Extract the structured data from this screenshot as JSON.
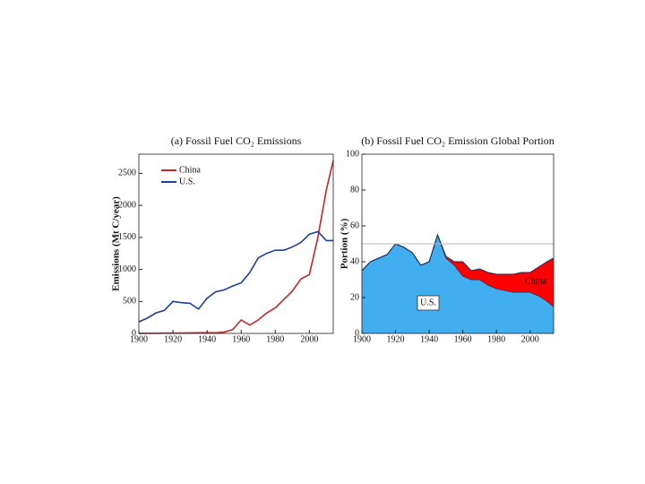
{
  "chart_data": [
    {
      "type": "line",
      "title": "(a)  Fossil Fuel CO₂ Emissions",
      "y_label": "Emissions (Mt C/year)",
      "x": [
        1900,
        1905,
        1910,
        1915,
        1920,
        1925,
        1930,
        1935,
        1940,
        1945,
        1950,
        1955,
        1960,
        1965,
        1970,
        1975,
        1980,
        1985,
        1990,
        1995,
        2000,
        2005,
        2010,
        2014
      ],
      "series": [
        {
          "name": "China",
          "color": "#c0282a",
          "values": [
            1,
            2,
            3,
            4,
            5,
            6,
            8,
            10,
            12,
            10,
            20,
            60,
            210,
            130,
            210,
            320,
            400,
            530,
            660,
            850,
            920,
            1500,
            2250,
            2700
          ]
        },
        {
          "name": "U.S.",
          "color": "#1f3f9f",
          "values": [
            180,
            240,
            320,
            360,
            500,
            480,
            470,
            380,
            550,
            650,
            680,
            740,
            790,
            950,
            1180,
            1250,
            1300,
            1300,
            1350,
            1420,
            1550,
            1590,
            1450,
            1450
          ]
        }
      ],
      "xlim": [
        1900,
        2014
      ],
      "xticks": [
        1900,
        1920,
        1940,
        1960,
        1980,
        2000
      ],
      "ylim": [
        0,
        2800
      ],
      "yticks": [
        0,
        500,
        1000,
        1500,
        2000,
        2500
      ],
      "legend": "upper-left"
    },
    {
      "type": "area",
      "title": "(b)  Fossil Fuel CO₂ Emission Global Portion",
      "y_label": "Portion (%)",
      "x": [
        1900,
        1905,
        1910,
        1915,
        1920,
        1925,
        1930,
        1935,
        1940,
        1945,
        1950,
        1955,
        1960,
        1965,
        1970,
        1975,
        1980,
        1985,
        1990,
        1995,
        2000,
        2005,
        2010,
        2014
      ],
      "series": [
        {
          "name": "U.S.",
          "color": "#41aef0",
          "values": [
            35,
            40,
            42,
            44,
            50,
            48,
            45,
            38,
            40,
            55,
            42,
            38,
            32,
            30,
            30,
            27,
            25,
            24,
            23,
            23,
            23,
            21,
            18,
            15
          ]
        },
        {
          "name": "China",
          "color": "#ff0000",
          "values": [
            0,
            0,
            0,
            0,
            0,
            0,
            0,
            0,
            0,
            0,
            1,
            2,
            8,
            5,
            6,
            7,
            8,
            9,
            10,
            11,
            11,
            16,
            22,
            27
          ]
        }
      ],
      "xlim": [
        1900,
        2014
      ],
      "xticks": [
        1900,
        1920,
        1940,
        1960,
        1980,
        2000
      ],
      "ylim": [
        0,
        100
      ],
      "yticks": [
        0,
        20,
        40,
        60,
        80,
        100
      ],
      "hline": 50,
      "annotations": [
        "U.S.",
        "China"
      ]
    }
  ]
}
